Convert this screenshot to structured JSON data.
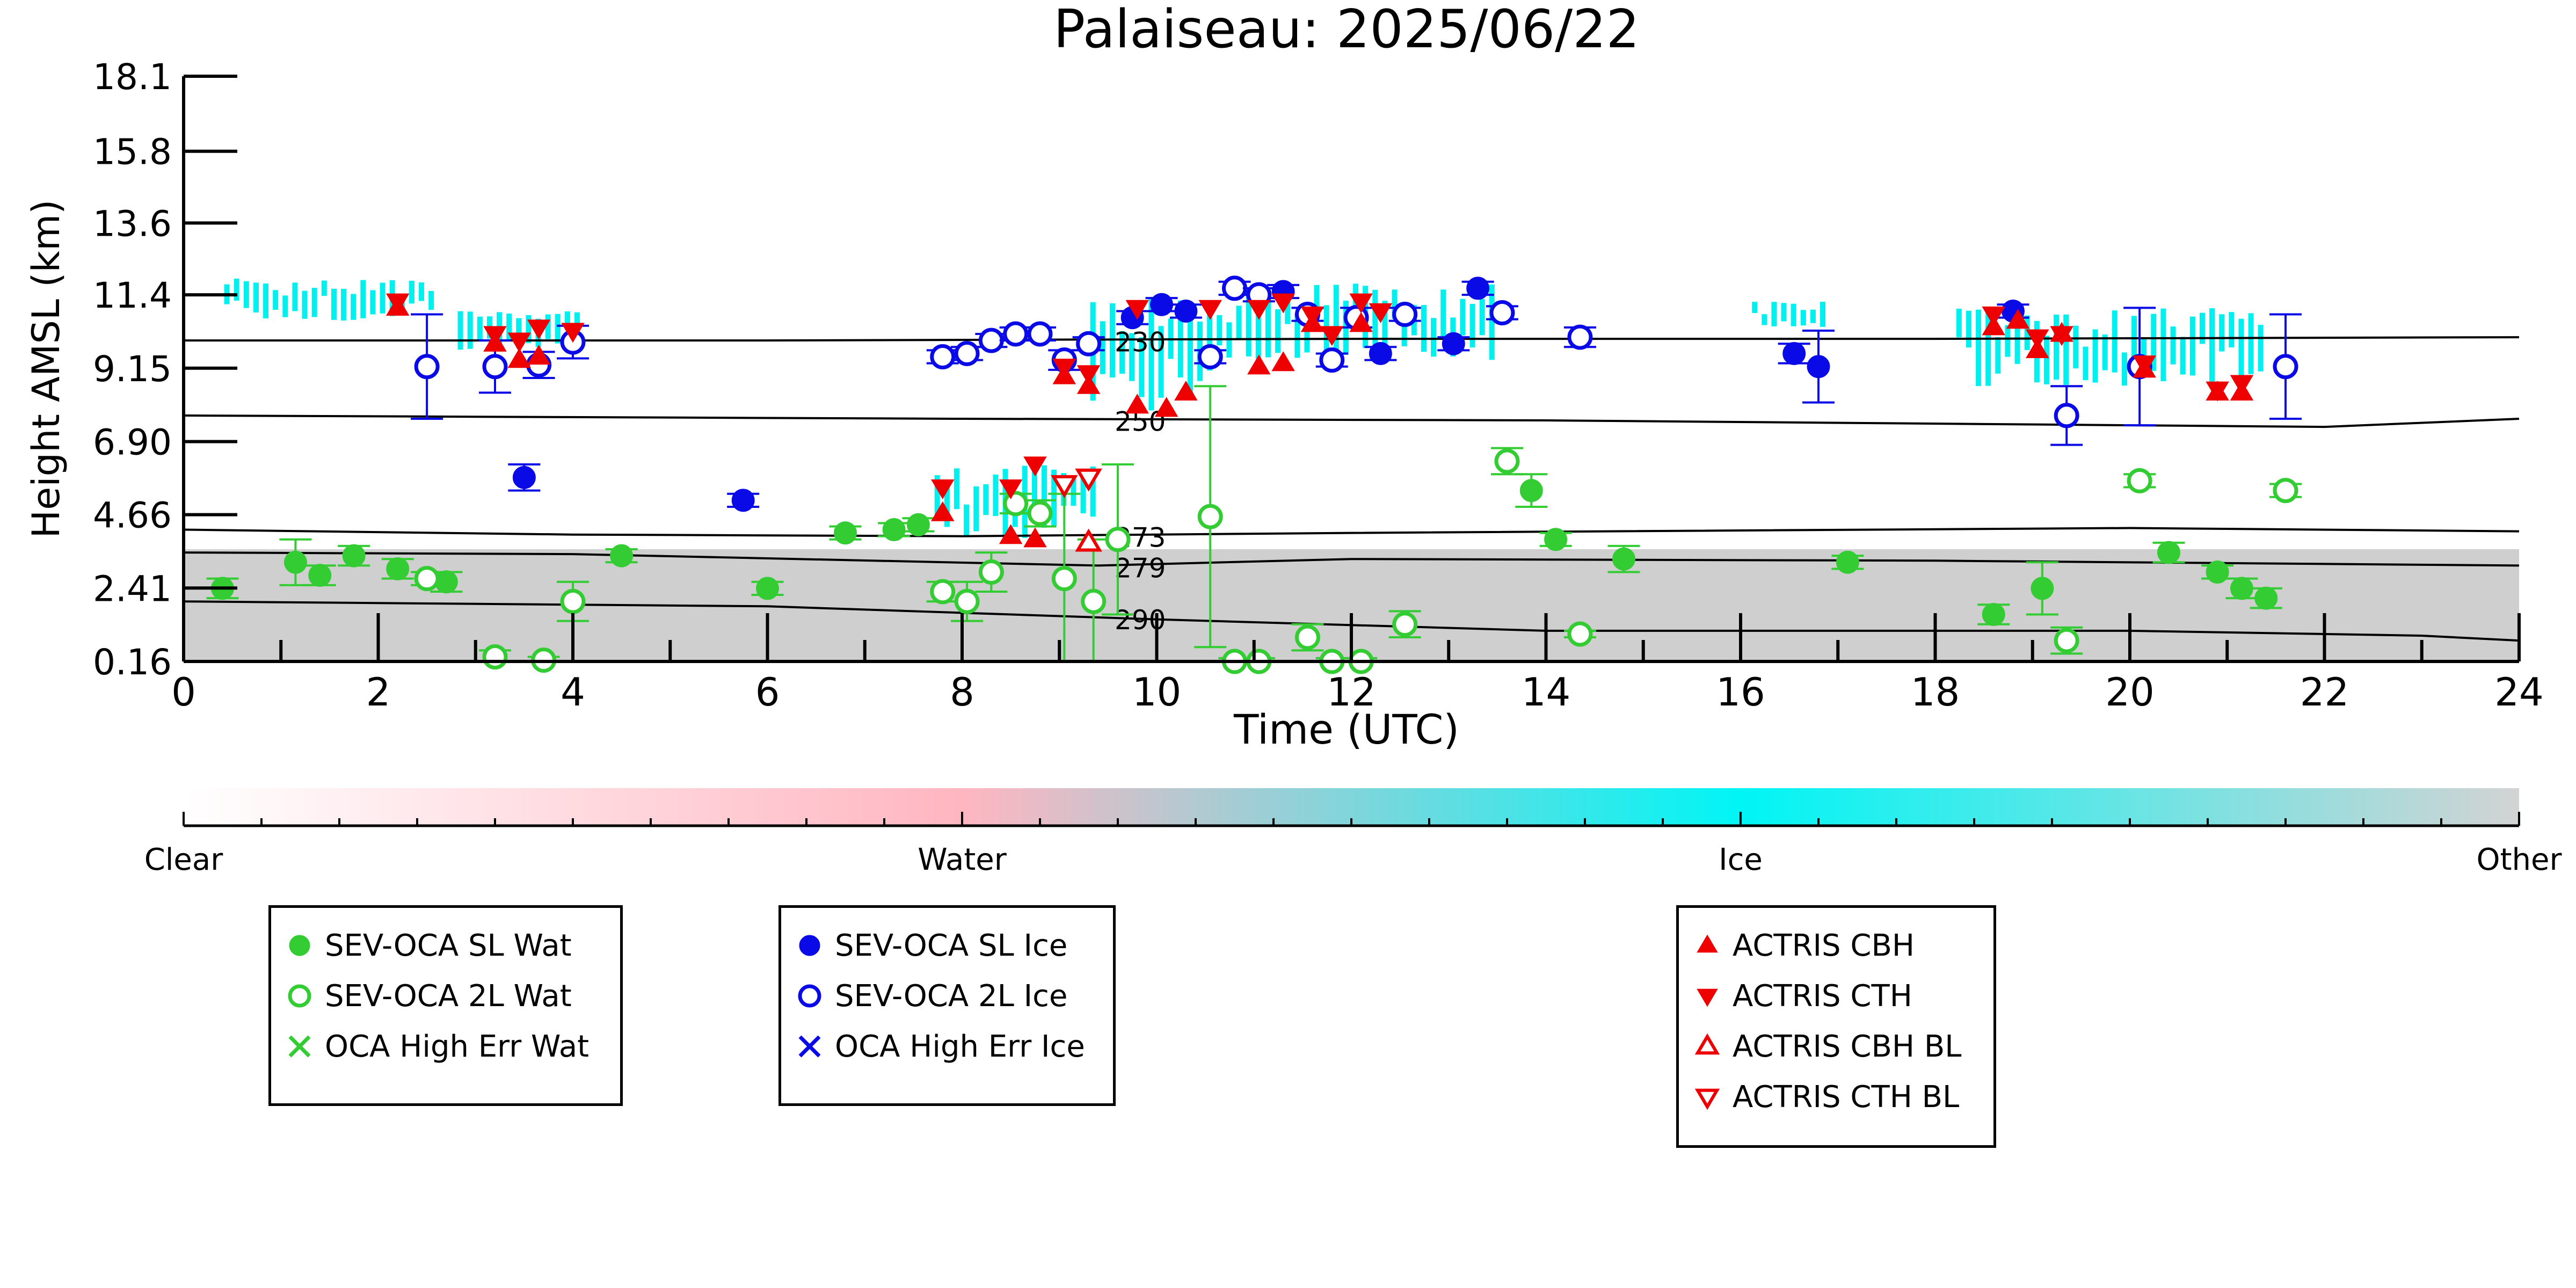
{
  "chart_data": {
    "type": "scatter",
    "title": "Palaiseau: 2025/06/22",
    "xlabel": "Time (UTC)",
    "ylabel": "Height AMSL (km)",
    "xlim": [
      0,
      24
    ],
    "ylim": [
      0.16,
      18.1
    ],
    "x_ticks": [
      "0",
      "2",
      "4",
      "6",
      "8",
      "10",
      "12",
      "14",
      "16",
      "18",
      "20",
      "22",
      "24"
    ],
    "y_ticks": [
      0.16,
      2.41,
      4.66,
      6.9,
      9.15,
      11.4,
      13.6,
      15.8,
      18.1
    ],
    "y_tick_labels": [
      "0.16",
      "2.41",
      "4.66",
      "6.90",
      "9.15",
      "11.4",
      "13.6",
      "15.8",
      "18.1"
    ],
    "grid": false,
    "colors": {
      "water": "#33cc33",
      "ice": "#0a0ae6",
      "actris": "#ee0000",
      "ice_cloud": "#00f0f0",
      "other": "#cccccc",
      "water_cloud": "#ffb6c1"
    },
    "colorbar": {
      "labels": [
        "Clear",
        "Water",
        "Ice",
        "Other"
      ],
      "stops": [
        "#ffffff",
        "#ffb6c1",
        "#00f5f5",
        "#d3d3d3"
      ]
    },
    "isotherms": [
      {
        "label": "230",
        "label_x": 9.4,
        "points": [
          [
            0,
            10.0
          ],
          [
            6,
            10.0
          ],
          [
            12,
            10.05
          ],
          [
            18,
            10.05
          ],
          [
            24,
            10.1
          ]
        ]
      },
      {
        "label": "250",
        "label_x": 9.4,
        "points": [
          [
            0,
            7.7
          ],
          [
            8,
            7.6
          ],
          [
            14,
            7.55
          ],
          [
            20,
            7.4
          ],
          [
            22,
            7.35
          ],
          [
            24,
            7.6
          ]
        ]
      },
      {
        "label": "273",
        "label_x": 9.4,
        "points": [
          [
            0,
            4.2
          ],
          [
            4,
            4.05
          ],
          [
            8,
            4.0
          ],
          [
            12,
            4.1
          ],
          [
            20,
            4.25
          ],
          [
            24,
            4.15
          ]
        ]
      },
      {
        "label": "279",
        "label_x": 9.4,
        "points": [
          [
            0,
            3.5
          ],
          [
            4,
            3.45
          ],
          [
            9.4,
            3.1
          ],
          [
            12,
            3.3
          ],
          [
            18,
            3.25
          ],
          [
            24,
            3.1
          ]
        ]
      },
      {
        "label": "290",
        "label_x": 9.4,
        "points": [
          [
            0,
            2.0
          ],
          [
            6,
            1.85
          ],
          [
            10,
            1.45
          ],
          [
            14,
            1.1
          ],
          [
            20,
            1.1
          ],
          [
            23,
            0.95
          ],
          [
            24,
            0.8
          ]
        ]
      }
    ],
    "series": [
      {
        "name": "SEV-OCA SL Wat",
        "marker": "filled-circle",
        "points": [
          {
            "x": 0.4,
            "y": 2.4,
            "err": 0.3
          },
          {
            "x": 1.15,
            "y": 3.2,
            "err": 0.7
          },
          {
            "x": 1.4,
            "y": 2.8,
            "err": 0.3
          },
          {
            "x": 1.75,
            "y": 3.4,
            "err": 0.3
          },
          {
            "x": 2.2,
            "y": 3.0,
            "err": 0.3
          },
          {
            "x": 2.7,
            "y": 2.6,
            "err": 0.3
          },
          {
            "x": 4.5,
            "y": 3.4,
            "err": 0.2
          },
          {
            "x": 6.0,
            "y": 2.4,
            "err": 0.2
          },
          {
            "x": 6.8,
            "y": 4.1,
            "err": 0.2
          },
          {
            "x": 7.3,
            "y": 4.2,
            "err": 0.2
          },
          {
            "x": 7.55,
            "y": 4.35,
            "err": 0.2
          },
          {
            "x": 13.85,
            "y": 5.4,
            "err": 0.5
          },
          {
            "x": 14.1,
            "y": 3.9,
            "err": 0.2
          },
          {
            "x": 14.8,
            "y": 3.3,
            "err": 0.4
          },
          {
            "x": 17.1,
            "y": 3.2,
            "err": 0.2
          },
          {
            "x": 18.6,
            "y": 1.6,
            "err": 0.3
          },
          {
            "x": 19.1,
            "y": 2.4,
            "err": 0.8
          },
          {
            "x": 20.4,
            "y": 3.5,
            "err": 0.3
          },
          {
            "x": 20.9,
            "y": 2.9,
            "err": 0.2
          },
          {
            "x": 21.15,
            "y": 2.4,
            "err": 0.3
          },
          {
            "x": 21.4,
            "y": 2.1,
            "err": 0.3
          }
        ]
      },
      {
        "name": "SEV-OCA 2L Wat",
        "marker": "open-circle",
        "points": [
          {
            "x": 2.5,
            "y": 2.7,
            "err": 0.2
          },
          {
            "x": 3.2,
            "y": 0.3,
            "err": 0.2
          },
          {
            "x": 3.7,
            "y": 0.2,
            "err": 0.1
          },
          {
            "x": 4.0,
            "y": 2.0,
            "err": 0.6
          },
          {
            "x": 7.8,
            "y": 2.3,
            "err": 0.3
          },
          {
            "x": 8.05,
            "y": 2.0,
            "err": 0.6
          },
          {
            "x": 8.3,
            "y": 2.9,
            "err": 0.6
          },
          {
            "x": 8.55,
            "y": 5.0,
            "err": 0.3
          },
          {
            "x": 8.8,
            "y": 4.7,
            "err": 0.4
          },
          {
            "x": 9.05,
            "y": 2.7,
            "err": 2.6
          },
          {
            "x": 9.35,
            "y": 2.0,
            "err": 1.9
          },
          {
            "x": 9.6,
            "y": 3.9,
            "err": 2.3
          },
          {
            "x": 10.55,
            "y": 4.6,
            "err": 4.0
          },
          {
            "x": 10.8,
            "y": 0.16,
            "err": 0.1
          },
          {
            "x": 11.05,
            "y": 0.16,
            "err": 0.1
          },
          {
            "x": 11.55,
            "y": 0.9,
            "err": 0.4
          },
          {
            "x": 11.8,
            "y": 0.16,
            "err": 0.1
          },
          {
            "x": 12.1,
            "y": 0.16,
            "err": 0.1
          },
          {
            "x": 12.55,
            "y": 1.3,
            "err": 0.4
          },
          {
            "x": 13.6,
            "y": 6.3,
            "err": 0.4
          },
          {
            "x": 14.35,
            "y": 1.0,
            "err": 0.1
          },
          {
            "x": 19.35,
            "y": 0.8,
            "err": 0.4
          },
          {
            "x": 20.1,
            "y": 5.7,
            "err": 0.2
          },
          {
            "x": 21.6,
            "y": 5.4,
            "err": 0.2
          }
        ]
      },
      {
        "name": "OCA High Err Wat",
        "marker": "x",
        "points": []
      },
      {
        "name": "SEV-OCA SL Ice",
        "marker": "filled-circle",
        "points": [
          {
            "x": 3.5,
            "y": 5.8,
            "err": 0.4
          },
          {
            "x": 5.75,
            "y": 5.1,
            "err": 0.2
          },
          {
            "x": 9.75,
            "y": 10.7,
            "err": 0.2
          },
          {
            "x": 10.05,
            "y": 11.1,
            "err": 0.2
          },
          {
            "x": 10.3,
            "y": 10.9,
            "err": 0.2
          },
          {
            "x": 11.3,
            "y": 11.5,
            "err": 0.2
          },
          {
            "x": 12.3,
            "y": 9.6,
            "err": 0.2
          },
          {
            "x": 13.05,
            "y": 9.9,
            "err": 0.2
          },
          {
            "x": 13.3,
            "y": 11.6,
            "err": 0.2
          },
          {
            "x": 16.55,
            "y": 9.6,
            "err": 0.3
          },
          {
            "x": 16.8,
            "y": 9.2,
            "err": 1.1
          },
          {
            "x": 18.8,
            "y": 10.9,
            "err": 0.2
          }
        ]
      },
      {
        "name": "SEV-OCA 2L Ice",
        "marker": "open-circle",
        "points": [
          {
            "x": 2.5,
            "y": 9.2,
            "err": 1.6
          },
          {
            "x": 3.2,
            "y": 9.2,
            "err": 0.8
          },
          {
            "x": 3.65,
            "y": 9.25,
            "err": 0.4
          },
          {
            "x": 4.0,
            "y": 9.95,
            "err": 0.5
          },
          {
            "x": 7.8,
            "y": 9.5,
            "err": 0.2
          },
          {
            "x": 8.05,
            "y": 9.6,
            "err": 0.2
          },
          {
            "x": 8.3,
            "y": 10.0,
            "err": 0.2
          },
          {
            "x": 8.55,
            "y": 10.2,
            "err": 0.2
          },
          {
            "x": 8.8,
            "y": 10.2,
            "err": 0.2
          },
          {
            "x": 9.05,
            "y": 9.4,
            "err": 0.3
          },
          {
            "x": 9.3,
            "y": 9.9,
            "err": 0.2
          },
          {
            "x": 10.55,
            "y": 9.5,
            "err": 0.2
          },
          {
            "x": 10.8,
            "y": 11.6,
            "err": 0.2
          },
          {
            "x": 11.05,
            "y": 11.4,
            "err": 0.2
          },
          {
            "x": 11.55,
            "y": 10.8,
            "err": 0.2
          },
          {
            "x": 11.8,
            "y": 9.4,
            "err": 0.2
          },
          {
            "x": 12.05,
            "y": 10.7,
            "err": 0.3
          },
          {
            "x": 12.55,
            "y": 10.8,
            "err": 0.2
          },
          {
            "x": 13.55,
            "y": 10.85,
            "err": 0.2
          },
          {
            "x": 14.35,
            "y": 10.1,
            "err": 0.3
          },
          {
            "x": 19.35,
            "y": 7.7,
            "err": 0.9
          },
          {
            "x": 20.1,
            "y": 9.2,
            "err": 1.8
          },
          {
            "x": 21.6,
            "y": 9.2,
            "err": 1.6
          }
        ]
      },
      {
        "name": "OCA High Err Ice",
        "marker": "x",
        "points": []
      },
      {
        "name": "ACTRIS CBH",
        "marker": "filled-triangle-up",
        "points": [
          {
            "x": 2.2,
            "y": 11.0
          },
          {
            "x": 3.2,
            "y": 9.9
          },
          {
            "x": 3.45,
            "y": 9.4
          },
          {
            "x": 3.65,
            "y": 9.5
          },
          {
            "x": 7.8,
            "y": 4.7
          },
          {
            "x": 8.5,
            "y": 4.0
          },
          {
            "x": 8.75,
            "y": 3.9
          },
          {
            "x": 9.05,
            "y": 8.9
          },
          {
            "x": 9.3,
            "y": 8.6
          },
          {
            "x": 9.8,
            "y": 8.0
          },
          {
            "x": 10.1,
            "y": 7.9
          },
          {
            "x": 10.3,
            "y": 8.4
          },
          {
            "x": 11.05,
            "y": 9.2
          },
          {
            "x": 11.3,
            "y": 9.3
          },
          {
            "x": 11.6,
            "y": 10.5
          },
          {
            "x": 12.1,
            "y": 10.5
          },
          {
            "x": 18.6,
            "y": 10.4
          },
          {
            "x": 18.85,
            "y": 10.6
          },
          {
            "x": 19.05,
            "y": 9.7
          },
          {
            "x": 19.3,
            "y": 10.2
          },
          {
            "x": 20.15,
            "y": 9.1
          },
          {
            "x": 20.9,
            "y": 8.4
          },
          {
            "x": 21.15,
            "y": 8.4
          }
        ]
      },
      {
        "name": "ACTRIS CTH",
        "marker": "filled-triangle-down",
        "points": [
          {
            "x": 2.2,
            "y": 11.2
          },
          {
            "x": 3.2,
            "y": 10.2
          },
          {
            "x": 3.45,
            "y": 10.0
          },
          {
            "x": 3.65,
            "y": 10.4
          },
          {
            "x": 4.0,
            "y": 10.3
          },
          {
            "x": 7.8,
            "y": 5.5
          },
          {
            "x": 8.5,
            "y": 5.5
          },
          {
            "x": 8.75,
            "y": 6.2
          },
          {
            "x": 9.05,
            "y": 9.2
          },
          {
            "x": 9.3,
            "y": 9.0
          },
          {
            "x": 9.8,
            "y": 11.0
          },
          {
            "x": 10.55,
            "y": 11.0
          },
          {
            "x": 11.05,
            "y": 11.0
          },
          {
            "x": 11.3,
            "y": 11.2
          },
          {
            "x": 11.6,
            "y": 10.8
          },
          {
            "x": 11.8,
            "y": 10.2
          },
          {
            "x": 12.1,
            "y": 11.2
          },
          {
            "x": 12.3,
            "y": 10.9
          },
          {
            "x": 18.6,
            "y": 10.8
          },
          {
            "x": 19.05,
            "y": 10.1
          },
          {
            "x": 19.3,
            "y": 10.2
          },
          {
            "x": 20.15,
            "y": 9.3
          },
          {
            "x": 20.9,
            "y": 8.5
          },
          {
            "x": 21.15,
            "y": 8.7
          }
        ]
      },
      {
        "name": "ACTRIS CBH BL",
        "marker": "open-triangle-up",
        "points": [
          {
            "x": 9.3,
            "y": 3.8
          }
        ]
      },
      {
        "name": "ACTRIS CTH BL",
        "marker": "open-triangle-down",
        "points": [
          {
            "x": 9.05,
            "y": 5.6
          },
          {
            "x": 9.3,
            "y": 5.8
          }
        ]
      }
    ],
    "lidar_regions": [
      {
        "kind": "other",
        "x0": 0,
        "x1": 24,
        "y0": 0.16,
        "y1": 3.6
      },
      {
        "kind": "ice",
        "x0": 0.4,
        "x1": 2.6,
        "y0": 10.6,
        "y1": 11.9
      },
      {
        "kind": "ice",
        "x0": 2.8,
        "x1": 4.1,
        "y0": 9.7,
        "y1": 10.9
      },
      {
        "kind": "ice",
        "x0": 7.7,
        "x1": 9.4,
        "y0": 3.9,
        "y1": 6.2
      },
      {
        "kind": "ice",
        "x0": 9.3,
        "x1": 10.6,
        "y0": 7.8,
        "y1": 11.3
      },
      {
        "kind": "ice",
        "x0": 10.6,
        "x1": 13.5,
        "y0": 9.4,
        "y1": 11.8
      },
      {
        "kind": "ice",
        "x0": 18.2,
        "x1": 21.4,
        "y0": 8.6,
        "y1": 11.0
      },
      {
        "kind": "ice",
        "x0": 16.1,
        "x1": 16.9,
        "y0": 10.4,
        "y1": 11.2
      }
    ]
  },
  "legend_groups": [
    {
      "id": "water",
      "items": [
        {
          "label": "SEV-OCA SL Wat",
          "marker": "filled-circle",
          "color": "#33cc33"
        },
        {
          "label": "SEV-OCA 2L Wat",
          "marker": "open-circle",
          "color": "#33cc33"
        },
        {
          "label": "OCA High Err Wat",
          "marker": "x",
          "color": "#33cc33"
        }
      ]
    },
    {
      "id": "ice",
      "items": [
        {
          "label": "SEV-OCA SL Ice",
          "marker": "filled-circle",
          "color": "#0a0ae6"
        },
        {
          "label": "SEV-OCA 2L Ice",
          "marker": "open-circle",
          "color": "#0a0ae6"
        },
        {
          "label": "OCA High Err Ice",
          "marker": "x",
          "color": "#0a0ae6"
        }
      ]
    },
    {
      "id": "actris",
      "items": [
        {
          "label": "ACTRIS CBH",
          "marker": "filled-triangle-up",
          "color": "#ee0000"
        },
        {
          "label": "ACTRIS CTH",
          "marker": "filled-triangle-down",
          "color": "#ee0000"
        },
        {
          "label": "ACTRIS CBH BL",
          "marker": "open-triangle-up",
          "color": "#ee0000"
        },
        {
          "label": "ACTRIS CTH BL",
          "marker": "open-triangle-down",
          "color": "#ee0000"
        }
      ]
    }
  ]
}
